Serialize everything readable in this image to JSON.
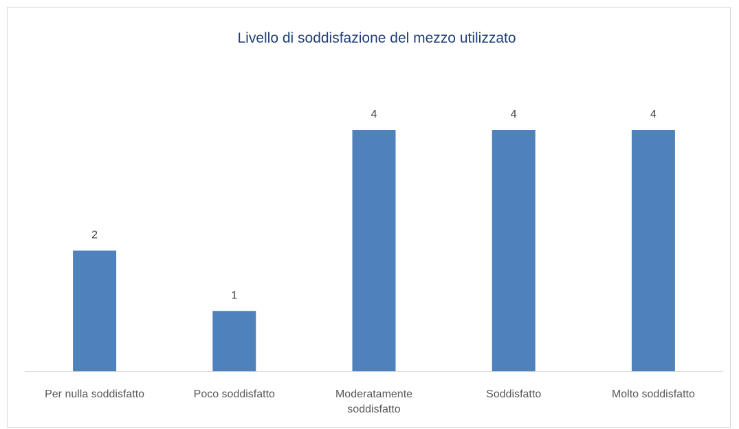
{
  "chart_data": {
    "type": "bar",
    "title": "Livello di soddisfazione del mezzo utilizzato",
    "categories": [
      "Per nulla soddisfatto",
      "Poco soddisfatto",
      "Moderatamente soddisfatto",
      "Soddisfatto",
      "Molto soddisfatto"
    ],
    "values": [
      2,
      1,
      4,
      4,
      4
    ],
    "color": "#4f81bd"
  }
}
